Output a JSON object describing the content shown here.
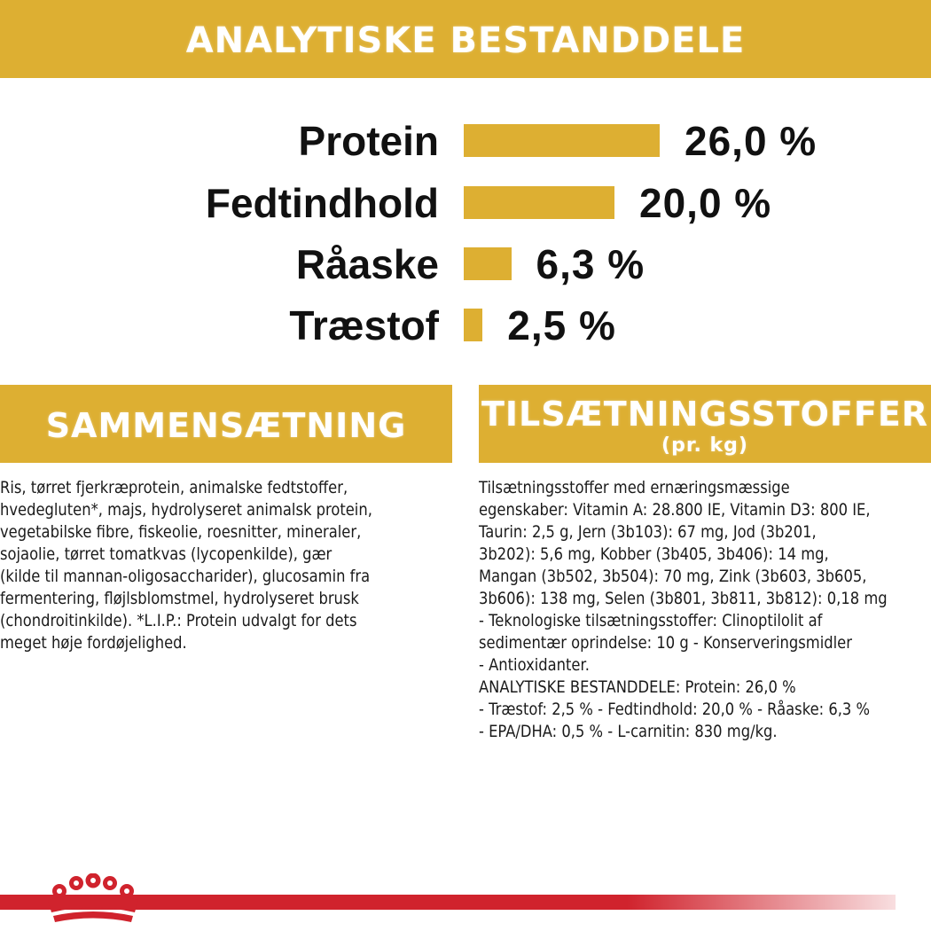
{
  "header": {
    "title": "ANALYTISKE BESTANDDELE"
  },
  "nutrients": [
    {
      "label": "Protein",
      "value": "26,0 %",
      "percent": 26.0
    },
    {
      "label": "Fedtindhold",
      "value": "20,0 %",
      "percent": 20.0
    },
    {
      "label": "Råaske",
      "value": "6,3 %",
      "percent": 6.3
    },
    {
      "label": "Træstof",
      "value": "2,5 %",
      "percent": 2.5
    }
  ],
  "composition": {
    "title": "SAMMENSÆTNING",
    "text": "Ris, tørret fjerkræprotein, animalske fedtstoffer,\nhvedegluten*, majs, hydrolyseret animalsk protein,\nvegetabilske fibre, fiskeolie, roesnitter, mineraler,\nsojaolie, tørret tomatkvas (lycopenkilde), gær\n(kilde til mannan-oligosaccharider), glucosamin fra\nfermentering, fløjlsblomstmel, hydrolyseret brusk\n(chondroitinkilde). *L.I.P.: Protein udvalgt for dets\nmeget høje fordøjelighed."
  },
  "additives": {
    "title": "TILSÆTNINGSSTOFFER",
    "subtitle": "(pr. kg)",
    "text": "Tilsætningsstoffer med ernæringsmæssige\negenskaber: Vitamin A: 28.800 IE, Vitamin D3: 800 IE,\nTaurin: 2,5 g, Jern (3b103): 67 mg, Jod (3b201,\n3b202): 5,6 mg, Kobber (3b405, 3b406): 14 mg,\nMangan (3b502, 3b504): 70 mg, Zink (3b603, 3b605,\n3b606): 138 mg, Selen (3b801, 3b811, 3b812): 0,18 mg\n- Teknologiske tilsætningsstoffer: Clinoptilolit af\nsedimentær oprindelse: 10 g - Konserveringsmidler\n- Antioxidanter.\nANALYTISKE BESTANDDELE: Protein: 26,0 %\n- Træstof: 2,5 % - Fedtindhold: 20,0 % - Råaske: 6,3 %\n- EPA/DHA: 0,5 % - L-carnitin: 830 mg/kg."
  },
  "colors": {
    "gold": "#DDAF32",
    "brand_red": "#D0232D",
    "text": "#111111"
  },
  "logo": {
    "icon": "crown-icon"
  }
}
